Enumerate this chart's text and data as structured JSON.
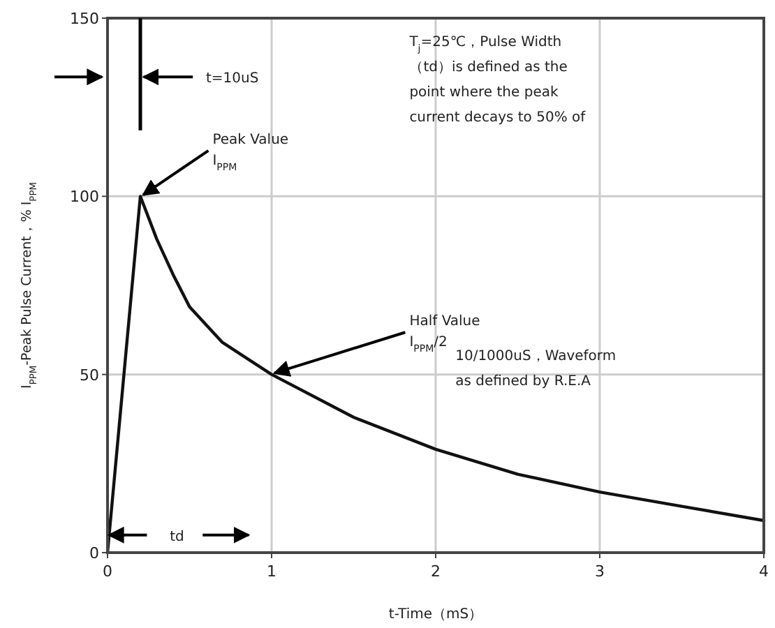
{
  "chart_data": {
    "type": "line",
    "xlabel": "t-Time（mS）",
    "ylabel": "I$_{PPM}$-Peak Pulse Current，% I$_{PPM}$",
    "x": [
      0,
      0.2,
      0.3,
      0.4,
      0.5,
      0.7,
      1,
      1.5,
      2,
      2.5,
      3,
      3.5,
      4
    ],
    "series": [
      {
        "color": "#111111",
        "values": [
          0,
          100,
          88,
          78,
          69,
          59,
          50,
          38,
          29,
          22,
          17,
          13,
          9
        ]
      }
    ],
    "xlim": [
      0,
      4
    ],
    "ylim": [
      0,
      150
    ],
    "xticks": [
      0,
      1,
      2,
      3,
      4
    ],
    "yticks": [
      0,
      50,
      100,
      150
    ],
    "grid": true,
    "marker": "none",
    "line_style": "solid",
    "annotations": [
      {
        "text": "Peak Value\nI$_{PPM}$",
        "x": 0.2,
        "y": 100
      },
      {
        "text": "Half Value\nI$_{PPM}$/2",
        "x": 1,
        "y": 50
      },
      "t=10uS",
      "td",
      "T$_{j}$=25℃，Pulse Width\n（td）is defined as the\npoint where the peak\ncurrent  decays to 50% of",
      "10/1000uS，Waveform\nas defined by R.E.A"
    ]
  }
}
